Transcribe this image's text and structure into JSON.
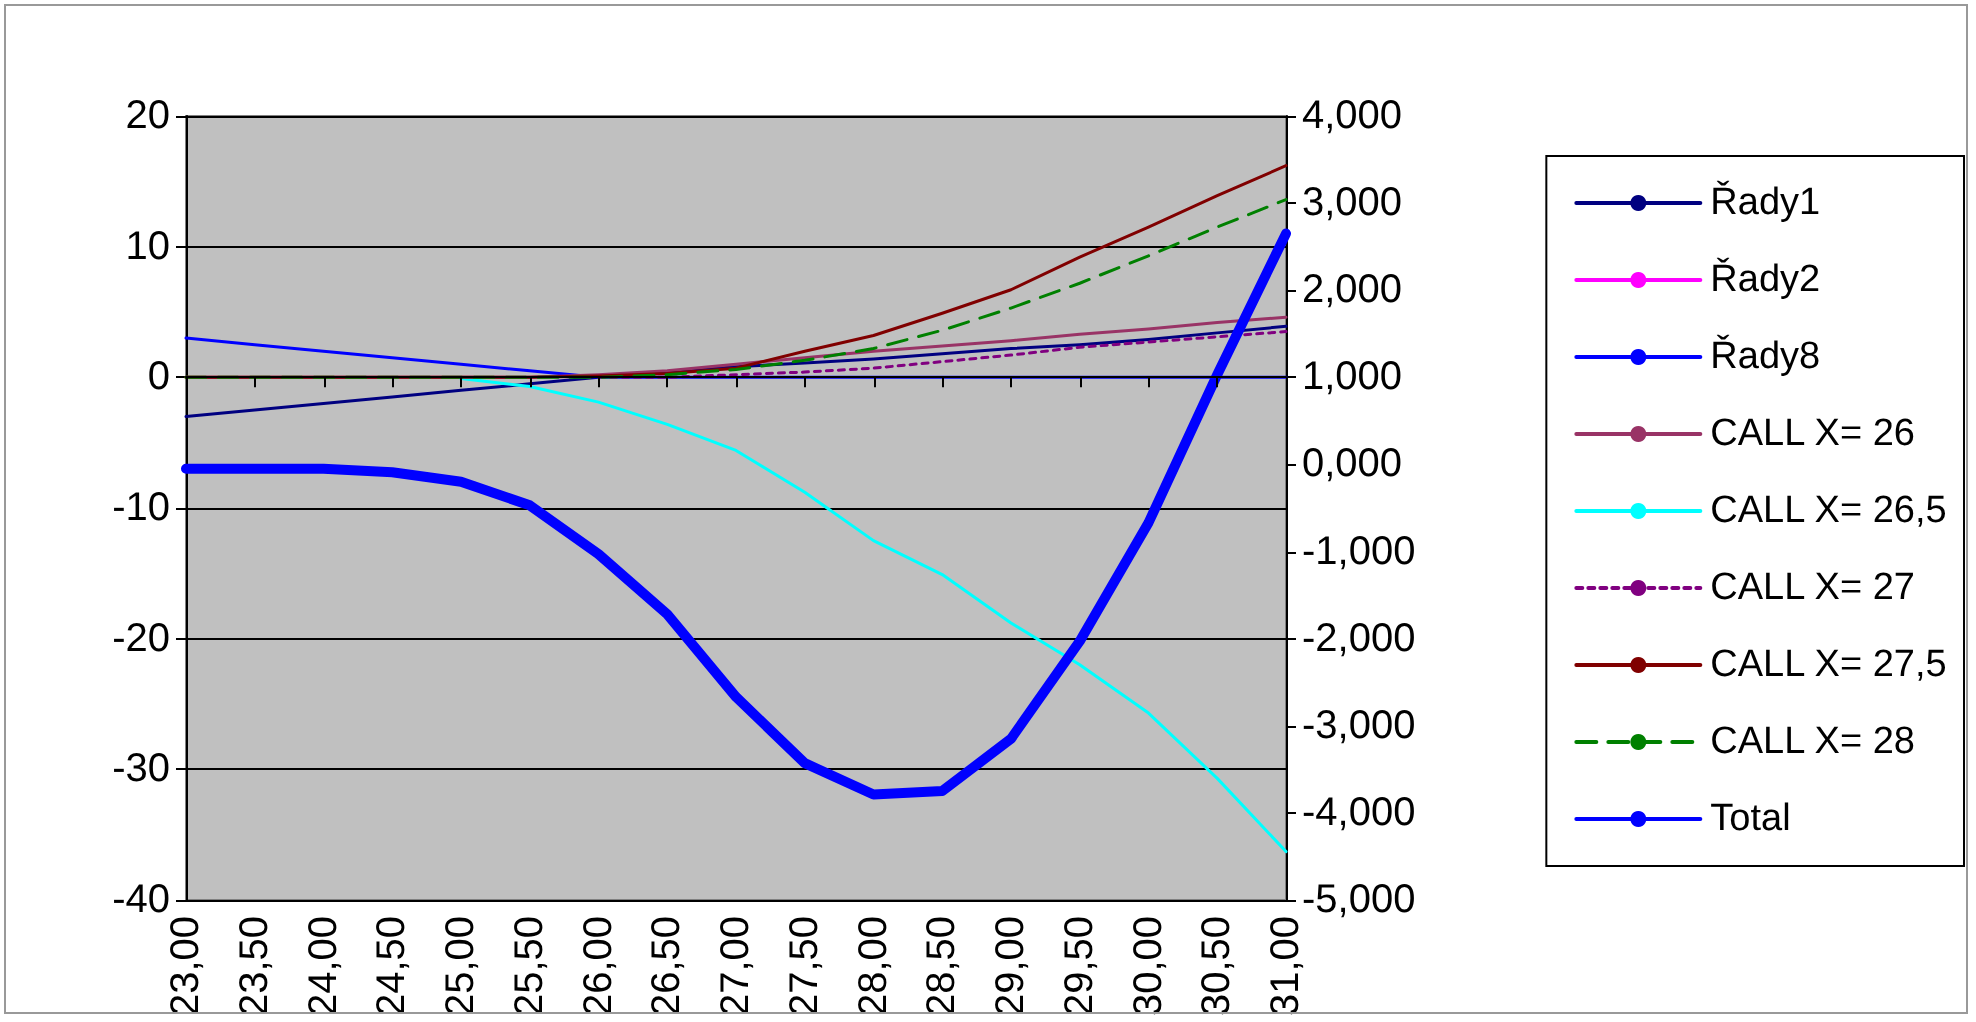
{
  "chart_data": {
    "type": "line",
    "categories": [
      "23,00",
      "23,50",
      "24,00",
      "24,50",
      "25,00",
      "25,50",
      "26,00",
      "26,50",
      "27,00",
      "27,50",
      "28,00",
      "28,50",
      "29,00",
      "29,50",
      "30,00",
      "30,50",
      "31,00"
    ],
    "series": [
      {
        "name": "Řady1",
        "color": "#000080",
        "values": [
          -3.0,
          -2.5,
          -2.0,
          -1.5,
          -1.0,
          -0.5,
          0,
          0.4,
          0.8,
          1.1,
          1.4,
          1.8,
          2.2,
          2.5,
          2.9,
          3.4,
          3.9
        ]
      },
      {
        "name": "Řady2",
        "color": "#ff00ff",
        "values": [
          null,
          null,
          null,
          null,
          null,
          null,
          null,
          null,
          null,
          null,
          null,
          null,
          null,
          null,
          null,
          null,
          null
        ]
      },
      {
        "name": "Řady8",
        "color": "#0000ff",
        "values": [
          3.0,
          2.5,
          2.0,
          1.5,
          1.0,
          0.5,
          0,
          0,
          0,
          0,
          0,
          0,
          0,
          0,
          0,
          0,
          0
        ]
      },
      {
        "name": "CALL X= 26",
        "color": "#993366",
        "values": [
          0,
          0,
          0,
          0,
          0,
          0,
          0.2,
          0.5,
          1.0,
          1.5,
          2.0,
          2.4,
          2.8,
          3.3,
          3.7,
          4.2,
          4.6
        ]
      },
      {
        "name": "CALL X= 26,5",
        "color": "#00ffff",
        "values": [
          null,
          null,
          null,
          null,
          -0.1,
          -0.7,
          -1.9,
          -3.6,
          -5.6,
          -8.8,
          -12.5,
          -15.1,
          -18.8,
          -22.0,
          -25.7,
          -30.7,
          -36.3
        ]
      },
      {
        "name": "CALL X= 27",
        "color": "#800080",
        "line_style": "dotted",
        "values": [
          null,
          null,
          null,
          null,
          null,
          null,
          0,
          0,
          0.2,
          0.4,
          0.7,
          1.2,
          1.7,
          2.3,
          2.7,
          3.1,
          3.5
        ]
      },
      {
        "name": "CALL X= 27,5",
        "color": "#800000",
        "values": [
          0,
          0,
          0,
          0,
          0,
          0,
          0.1,
          0.3,
          0.7,
          2.0,
          3.2,
          4.9,
          6.7,
          9.2,
          11.5,
          13.9,
          16.2
        ]
      },
      {
        "name": "CALL X= 28",
        "color": "#008000",
        "line_style": "dashed",
        "values": [
          0,
          0,
          0,
          0,
          0,
          0,
          0,
          0.2,
          0.6,
          1.3,
          2.2,
          3.6,
          5.3,
          7.2,
          9.3,
          11.5,
          13.6
        ]
      },
      {
        "name": "Total",
        "color": "#0000ff",
        "axis": "y2",
        "values": [
          -0.05,
          -0.05,
          -0.05,
          -0.09,
          -0.2,
          -0.47,
          -1.03,
          -1.72,
          -2.67,
          -3.43,
          -3.79,
          -3.75,
          -3.15,
          -2.03,
          -0.67,
          1.03,
          2.65
        ]
      }
    ],
    "ylim": [
      -40,
      20
    ],
    "yticks": [
      -40,
      -30,
      -20,
      -10,
      0,
      10,
      20
    ],
    "y2lim": [
      -5,
      4
    ],
    "y2ticks": [
      {
        "value": -5,
        "label": "-5,000"
      },
      {
        "value": -4,
        "label": "-4,000"
      },
      {
        "value": -3,
        "label": "-3,000"
      },
      {
        "value": -2,
        "label": "-2,000"
      },
      {
        "value": -1,
        "label": "-1,000"
      },
      {
        "value": 0,
        "label": "0,000"
      },
      {
        "value": 1,
        "label": "1,000"
      },
      {
        "value": 2,
        "label": "2,000"
      },
      {
        "value": 3,
        "label": "3,000"
      },
      {
        "value": 4,
        "label": "4,000"
      }
    ],
    "grid": "y",
    "legend": "right",
    "marker": "none",
    "line_style": "solid"
  }
}
